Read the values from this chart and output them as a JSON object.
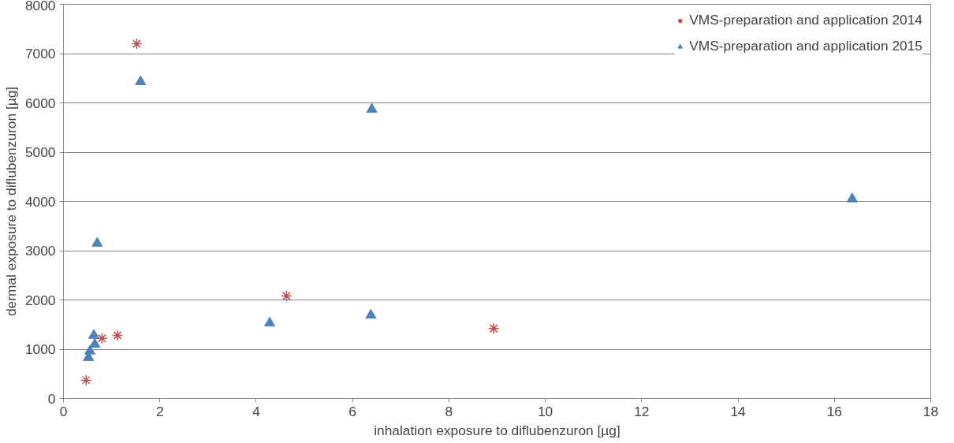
{
  "chart_data": {
    "type": "scatter",
    "xlabel": "inhalation exposure to diflubenzuron [µg]",
    "ylabel": "dermal exposure to diflubenzuron [µg]",
    "xlim": [
      0,
      18
    ],
    "xticks": [
      0,
      2,
      4,
      6,
      8,
      10,
      12,
      14,
      16,
      18
    ],
    "ylim": [
      0,
      8000
    ],
    "yticks": [
      0,
      1000,
      2000,
      3000,
      4000,
      5000,
      6000,
      7000,
      8000
    ],
    "grid": "y",
    "legend": "top right",
    "series": [
      {
        "name": "VMS-preparation and application 2014",
        "color": "#c0504d",
        "marker": "cross",
        "x": [
          0.47,
          0.8,
          1.12,
          1.52,
          4.63,
          8.93
        ],
        "values": [
          370,
          1220,
          1280,
          7200,
          2080,
          1420
        ]
      },
      {
        "name": "VMS-preparation and application 2015",
        "color": "#4f81bd",
        "marker": "triangle",
        "x": [
          0.52,
          0.55,
          0.65,
          0.63,
          0.7,
          1.6,
          4.28,
          6.38,
          6.4,
          16.37
        ],
        "values": [
          830,
          960,
          1100,
          1280,
          3150,
          6430,
          1530,
          1690,
          5870,
          4050
        ]
      }
    ]
  }
}
